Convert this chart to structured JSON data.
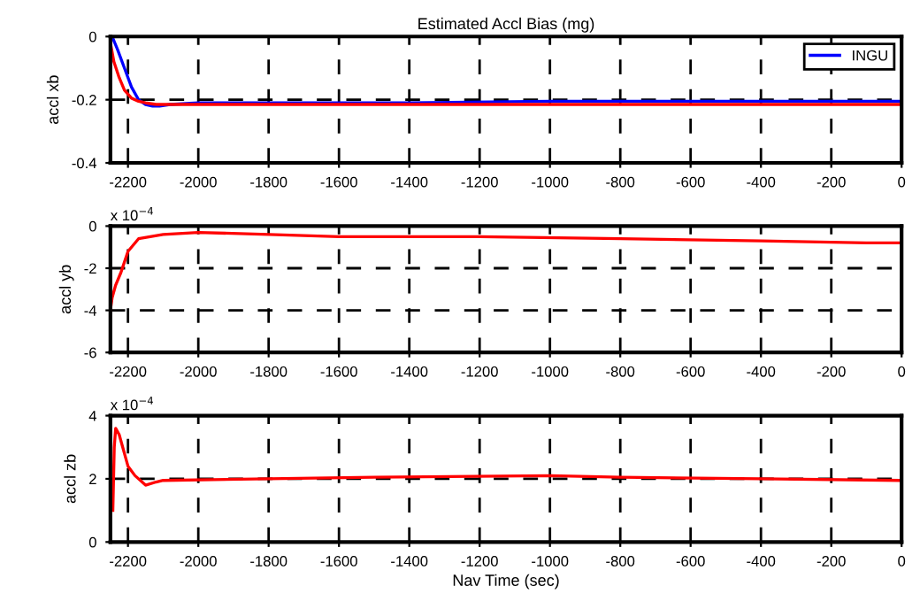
{
  "chart_data": [
    {
      "type": "line",
      "title": "Estimated Accl Bias (mg)",
      "ylabel": "accl xb",
      "xlim": [
        -2250,
        0
      ],
      "ylim": [
        -0.4,
        0
      ],
      "xticks": [
        -2200,
        -2000,
        -1800,
        -1600,
        -1400,
        -1200,
        -1000,
        -800,
        -600,
        -400,
        -200,
        0
      ],
      "yticks": [
        -0.4,
        -0.2,
        0
      ],
      "grid": true,
      "legend": "top right",
      "line_style": "solid",
      "marker": "none",
      "series": [
        {
          "name": "INGU",
          "color": "#0000ff",
          "x": [
            -2245,
            -2230,
            -2210,
            -2190,
            -2170,
            -2150,
            -2130,
            -2110,
            -2080,
            -2000,
            -1800,
            -1400,
            -1000,
            -600,
            -200,
            0
          ],
          "values": [
            0,
            -0.04,
            -0.1,
            -0.16,
            -0.2,
            -0.215,
            -0.22,
            -0.22,
            -0.215,
            -0.21,
            -0.21,
            -0.21,
            -0.205,
            -0.205,
            -0.205,
            -0.205
          ]
        },
        {
          "color": "#ff0000",
          "x": [
            -2250,
            -2240,
            -2225,
            -2210,
            -2190,
            -2170,
            -2150,
            -2120,
            -2000,
            -1800,
            -1400,
            -1000,
            -600,
            -200,
            0
          ],
          "values": [
            -0.02,
            -0.08,
            -0.13,
            -0.17,
            -0.195,
            -0.205,
            -0.21,
            -0.215,
            -0.215,
            -0.215,
            -0.215,
            -0.215,
            -0.215,
            -0.215,
            -0.215
          ]
        }
      ]
    },
    {
      "type": "line",
      "ylabel": "accl yb",
      "annotations": [
        "x 10$^{−4}$"
      ],
      "xlim": [
        -2250,
        0
      ],
      "ylim": [
        -6,
        0
      ],
      "xticks": [
        -2200,
        -2000,
        -1800,
        -1600,
        -1400,
        -1200,
        -1000,
        -800,
        -600,
        -400,
        -200,
        0
      ],
      "yticks": [
        -6,
        -4,
        -2,
        0
      ],
      "grid": true,
      "line_style": "solid",
      "marker": "none",
      "series": [
        {
          "color": "#ff0000",
          "x": [
            -2250,
            -2245,
            -2235,
            -2220,
            -2200,
            -2170,
            -2100,
            -2000,
            -1800,
            -1600,
            -1200,
            -800,
            -400,
            -100,
            0
          ],
          "values": [
            -4,
            -3.4,
            -2.8,
            -2.2,
            -1.2,
            -0.6,
            -0.4,
            -0.3,
            -0.4,
            -0.5,
            -0.5,
            -0.6,
            -0.7,
            -0.8,
            -0.8
          ]
        }
      ]
    },
    {
      "type": "line",
      "ylabel": "accl zb",
      "xlabel": "Nav Time (sec)",
      "annotations": [
        "x 10$^{−4}$"
      ],
      "xlim": [
        -2250,
        0
      ],
      "ylim": [
        0,
        4
      ],
      "xticks": [
        -2200,
        -2000,
        -1800,
        -1600,
        -1400,
        -1200,
        -1000,
        -800,
        -600,
        -400,
        -200,
        0
      ],
      "yticks": [
        0,
        2,
        4
      ],
      "grid": true,
      "line_style": "solid",
      "marker": "none",
      "series": [
        {
          "color": "#ff0000",
          "x": [
            -2243,
            -2239,
            -2235,
            -2225,
            -2210,
            -2200,
            -2180,
            -2150,
            -2120,
            -2100,
            -1800,
            -1500,
            -1000,
            -800,
            -400,
            0
          ],
          "values": [
            1.0,
            3.0,
            3.6,
            3.4,
            2.8,
            2.4,
            2.1,
            1.8,
            1.9,
            1.95,
            2.0,
            2.05,
            2.1,
            2.05,
            2.0,
            1.95
          ]
        }
      ]
    }
  ]
}
